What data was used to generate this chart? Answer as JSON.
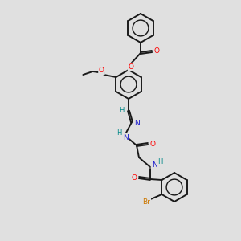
{
  "bg_color": "#e0e0e0",
  "bond_color": "#1a1a1a",
  "atom_colors": {
    "O": "#ff0000",
    "N": "#1a1acc",
    "Br": "#cc7700",
    "H": "#008888"
  },
  "figsize": [
    3.0,
    3.0
  ],
  "dpi": 100,
  "lw": 1.4,
  "ring_r": 18,
  "font_size": 6.5
}
